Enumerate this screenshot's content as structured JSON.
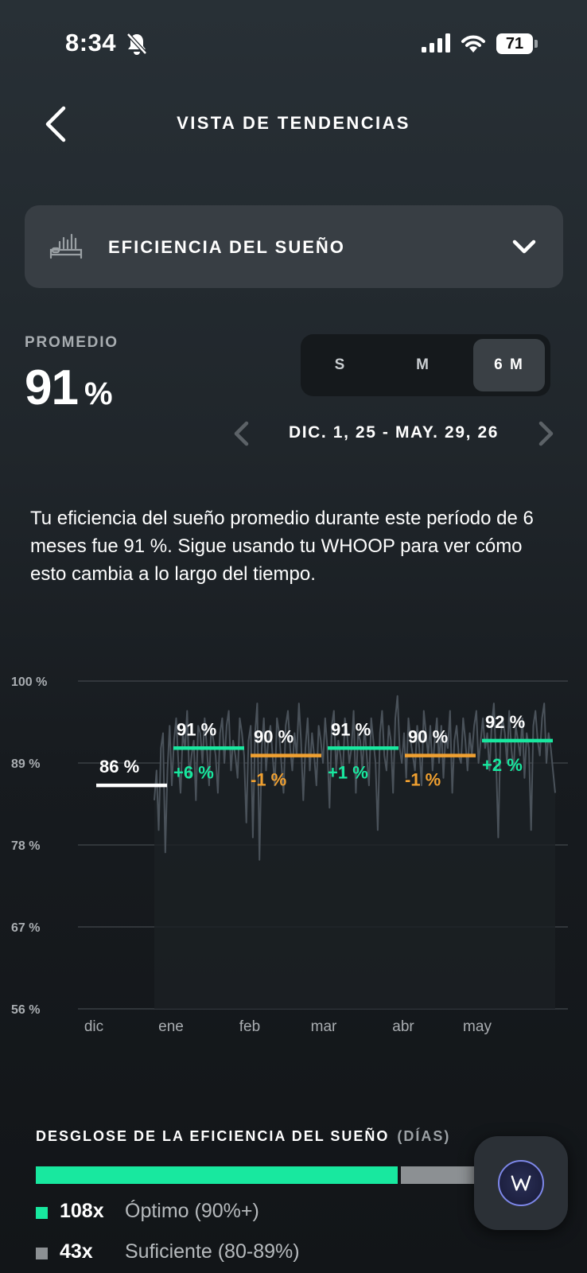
{
  "status_bar": {
    "time": "8:34",
    "battery": "71"
  },
  "header": {
    "title": "VISTA DE TENDENCIAS"
  },
  "metric_selector": {
    "label": "EFICIENCIA DEL SUEÑO"
  },
  "average": {
    "label": "PROMEDIO",
    "value": "91",
    "unit": "%"
  },
  "range_toggle": {
    "options": [
      "S",
      "M",
      "6 M"
    ],
    "selected": "6 M"
  },
  "date_range": "DIC. 1, 25 - MAY. 29, 26",
  "description": "Tu eficiencia del sueño promedio durante este período de 6 meses fue 91 %. Sigue usando tu WHOOP para ver cómo esto cambia a lo largo del tiempo.",
  "chart_data": {
    "type": "line",
    "y_ticks": [
      "100 %",
      "89 %",
      "78 %",
      "67 %",
      "56 %"
    ],
    "ylim": [
      56,
      100
    ],
    "x_labels": [
      "dic",
      "ene",
      "feb",
      "mar",
      "abr",
      "may"
    ],
    "monthly_averages": [
      {
        "month": "dic",
        "value": 86,
        "label": "86 %",
        "change": ""
      },
      {
        "month": "ene",
        "value": 91,
        "label": "91 %",
        "change": "+6 %"
      },
      {
        "month": "feb",
        "value": 90,
        "label": "90 %",
        "change": "-1 %"
      },
      {
        "month": "mar",
        "value": 91,
        "label": "91 %",
        "change": "+1 %"
      },
      {
        "month": "abr",
        "value": 90,
        "label": "90 %",
        "change": "-1 %"
      },
      {
        "month": "may",
        "value": 92,
        "label": "92 %",
        "change": "+2 %"
      }
    ],
    "daily_values": [
      84,
      88,
      80,
      91,
      93,
      77,
      88,
      94,
      86,
      92,
      95,
      89,
      85,
      93,
      91,
      96,
      87,
      90,
      92,
      84,
      94,
      93,
      89,
      95,
      91,
      86,
      94,
      92,
      90,
      85,
      93,
      95,
      89,
      94,
      96,
      88,
      92,
      90,
      87,
      95,
      93,
      90,
      81,
      92,
      94,
      79,
      93,
      97,
      76,
      91,
      95,
      88,
      92,
      94,
      90,
      86,
      95,
      93,
      89,
      85,
      94,
      96,
      91,
      88,
      93,
      90,
      97,
      92,
      84,
      91,
      95,
      88,
      93,
      90,
      86,
      94,
      92,
      89,
      95,
      91,
      83,
      94,
      96,
      88,
      92,
      90,
      87,
      95,
      93,
      89,
      91,
      96,
      85,
      93,
      92,
      88,
      94,
      90,
      86,
      95,
      92,
      89,
      80,
      93,
      96,
      90,
      88,
      94,
      92,
      85,
      95,
      98,
      91,
      89,
      93,
      87,
      95,
      92,
      90,
      88,
      94,
      91,
      86,
      96,
      93,
      90,
      94,
      88,
      92,
      95,
      89,
      94,
      87,
      93,
      91,
      96,
      85,
      92,
      94,
      90,
      89,
      95,
      92,
      88,
      93,
      90,
      94,
      96,
      89,
      92,
      95,
      91,
      93,
      88,
      94,
      97,
      90,
      79,
      92,
      95,
      93,
      89,
      96,
      91,
      88,
      94,
      92,
      90,
      95,
      87,
      93,
      91,
      80,
      94,
      96,
      92,
      90,
      95,
      97,
      89,
      93,
      91,
      88,
      85
    ]
  },
  "breakdown": {
    "title": "DESGLOSE DE LA EFICIENCIA DEL SUEÑO",
    "unit": "(DÍAS)",
    "segments": [
      {
        "count": "108x",
        "label": "Óptimo (90%+)",
        "value": 108,
        "color": "#18e89f"
      },
      {
        "count": "43x",
        "label": "Suficiente (80-89%)",
        "value": 43,
        "color": "#8c9093"
      }
    ]
  },
  "colors": {
    "positive": "#18e89f",
    "negative": "#f0a030",
    "neutral": "#ffffff"
  }
}
